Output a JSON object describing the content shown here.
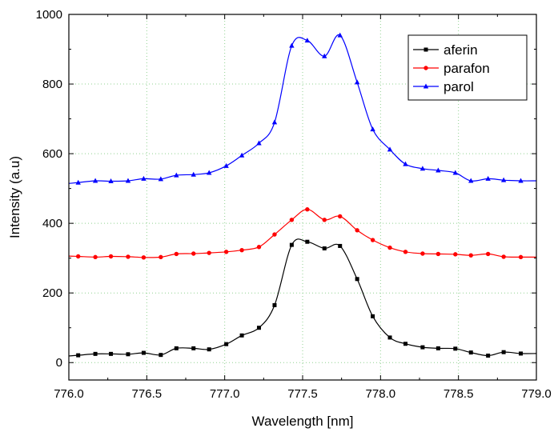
{
  "chart_data": {
    "type": "line",
    "xlabel": "Wavelength [nm]",
    "ylabel": "Intensity (a.u)",
    "xlim": [
      776.0,
      779.0
    ],
    "ylim": [
      -50,
      1000
    ],
    "xticks": [
      776.0,
      776.5,
      777.0,
      777.5,
      778.0,
      778.5,
      779.0
    ],
    "yticks": [
      0,
      200,
      400,
      600,
      800,
      1000
    ],
    "xtick_labels": [
      "776.0",
      "776.5",
      "777.0",
      "777.5",
      "778.0",
      "778.5",
      "779.0"
    ],
    "ytick_labels": [
      "0",
      "200",
      "400",
      "600",
      "800",
      "1000"
    ],
    "grid": true,
    "legend_position": "top-right",
    "series": [
      {
        "name": "aferin",
        "color": "#000000",
        "marker": "square",
        "x": [
          776.06,
          776.17,
          776.27,
          776.38,
          776.48,
          776.59,
          776.69,
          776.8,
          776.9,
          777.01,
          777.11,
          777.22,
          777.32,
          777.43,
          777.53,
          777.64,
          777.74,
          777.85,
          777.95,
          778.06,
          778.16,
          778.27,
          778.37,
          778.48,
          778.58,
          778.69,
          778.79,
          778.9
        ],
        "values": [
          21,
          25,
          25,
          24,
          28,
          22,
          41,
          41,
          38,
          53,
          78,
          100,
          165,
          338,
          347,
          328,
          335,
          240,
          133,
          72,
          54,
          44,
          41,
          40,
          29,
          20,
          30,
          26
        ]
      },
      {
        "name": "parafon",
        "color": "#ff0000",
        "marker": "circle",
        "x": [
          776.06,
          776.17,
          776.27,
          776.38,
          776.48,
          776.59,
          776.69,
          776.8,
          776.9,
          777.01,
          777.11,
          777.22,
          777.32,
          777.43,
          777.53,
          777.64,
          777.74,
          777.85,
          777.95,
          778.06,
          778.16,
          778.27,
          778.37,
          778.48,
          778.58,
          778.69,
          778.79,
          778.9
        ],
        "values": [
          305,
          303,
          305,
          304,
          302,
          303,
          312,
          313,
          315,
          318,
          323,
          332,
          368,
          410,
          440,
          410,
          420,
          380,
          352,
          330,
          318,
          313,
          312,
          311,
          308,
          312,
          304,
          303
        ]
      },
      {
        "name": "parol",
        "color": "#0000ff",
        "marker": "triangle",
        "x": [
          776.06,
          776.17,
          776.27,
          776.38,
          776.48,
          776.59,
          776.69,
          776.8,
          776.9,
          777.01,
          777.11,
          777.22,
          777.32,
          777.43,
          777.53,
          777.64,
          777.74,
          777.85,
          777.95,
          778.06,
          778.16,
          778.27,
          778.37,
          778.48,
          778.58,
          778.69,
          778.79,
          778.9
        ],
        "values": [
          517,
          522,
          521,
          522,
          528,
          527,
          538,
          540,
          545,
          565,
          595,
          630,
          690,
          910,
          925,
          880,
          940,
          805,
          670,
          612,
          570,
          557,
          552,
          545,
          522,
          528,
          524,
          522
        ]
      }
    ]
  }
}
